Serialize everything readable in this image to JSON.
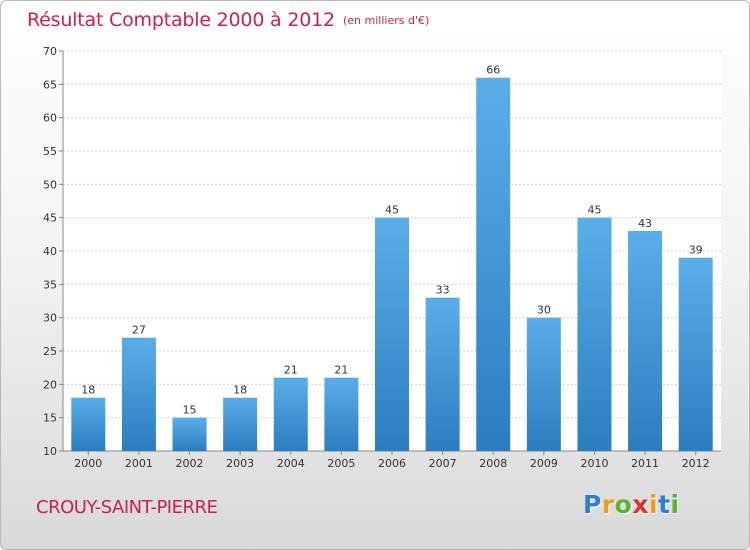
{
  "chart_data": {
    "type": "bar",
    "title": "Résultat Comptable 2000 à 2012",
    "unit": "(en milliers d'€)",
    "categories": [
      "2000",
      "2001",
      "2002",
      "2003",
      "2004",
      "2005",
      "2006",
      "2007",
      "2008",
      "2009",
      "2010",
      "2011",
      "2012"
    ],
    "values": [
      18,
      27,
      15,
      18,
      21,
      21,
      45,
      33,
      66,
      30,
      45,
      43,
      39
    ],
    "ylim": [
      10,
      70
    ],
    "yticks": [
      10,
      15,
      20,
      25,
      30,
      35,
      40,
      45,
      50,
      55,
      60,
      65,
      70
    ],
    "grid": true,
    "bar_color_top": "#5aaee8",
    "bar_color_bottom": "#2a7ec0"
  },
  "commune": "CROUY-SAINT-PIERRE",
  "brand": {
    "letters": [
      "P",
      "r",
      "o",
      "x",
      "i",
      "t",
      "i"
    ],
    "colors": [
      "#2f7fd0",
      "#f29a1c",
      "#58b52d",
      "#e0302a",
      "#f29a1c",
      "#2f7fd0",
      "#58b52d"
    ]
  }
}
